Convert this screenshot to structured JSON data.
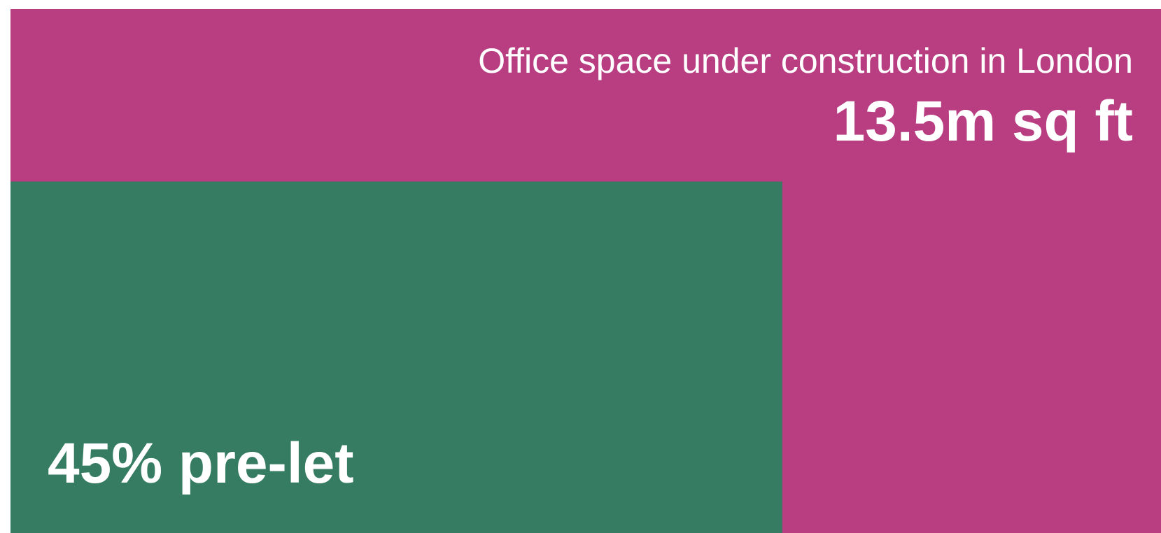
{
  "chart_data": {
    "type": "nested-area",
    "title": "Office space under construction in London",
    "total_label": "13.5m sq ft",
    "values": [
      45
    ],
    "value_labels": [
      "45% pre-let"
    ],
    "ylim": [
      0,
      100
    ],
    "colors": [
      "#b83d81",
      "#357c62"
    ]
  }
}
